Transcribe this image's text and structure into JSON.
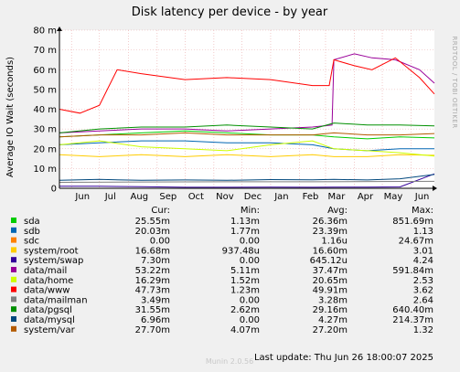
{
  "chart_data": {
    "type": "line",
    "title": "Disk latency per device - by year",
    "ylabel": "Average IO Wait (seconds)",
    "side_text": "RRDTOOL / TOBI OETIKER",
    "ylim": [
      0,
      0.08
    ],
    "yticks": [
      {
        "value": 0,
        "label": "0"
      },
      {
        "value": 0.01,
        "label": "10 m"
      },
      {
        "value": 0.02,
        "label": "20 m"
      },
      {
        "value": 0.03,
        "label": "30 m"
      },
      {
        "value": 0.04,
        "label": "40 m"
      },
      {
        "value": 0.05,
        "label": "50 m"
      },
      {
        "value": 0.06,
        "label": "60 m"
      },
      {
        "value": 0.07,
        "label": "70 m"
      },
      {
        "value": 0.08,
        "label": "80 m"
      }
    ],
    "xlim": [
      "2024-05-19",
      "2025-06-26"
    ],
    "xticks": [
      {
        "date": "2024-06-01",
        "label": "Jun"
      },
      {
        "date": "2024-07-01",
        "label": "Jul"
      },
      {
        "date": "2024-08-01",
        "label": "Aug"
      },
      {
        "date": "2024-09-01",
        "label": "Sep"
      },
      {
        "date": "2024-10-01",
        "label": "Oct"
      },
      {
        "date": "2024-11-01",
        "label": "Nov"
      },
      {
        "date": "2024-12-01",
        "label": "Dec"
      },
      {
        "date": "2025-01-01",
        "label": "Jan"
      },
      {
        "date": "2025-02-01",
        "label": "Feb"
      },
      {
        "date": "2025-03-01",
        "label": "Mar"
      },
      {
        "date": "2025-04-01",
        "label": "Apr"
      },
      {
        "date": "2025-05-01",
        "label": "May"
      },
      {
        "date": "2025-06-01",
        "label": "Jun"
      }
    ],
    "grid": true,
    "legend_headers": {
      "cur": "Cur:",
      "min": "Min:",
      "avg": "Avg:",
      "max": "Max:"
    },
    "series": [
      {
        "name": "sda",
        "color": "#00cc00",
        "cur": "25.55m",
        "min": "1.13m",
        "avg": "26.36m",
        "max": "851.69m",
        "points": [
          [
            "2024-05-19",
            0.026
          ],
          [
            "2024-07-01",
            0.027
          ],
          [
            "2024-08-15",
            0.028
          ],
          [
            "2024-10-01",
            0.029
          ],
          [
            "2024-11-15",
            0.028
          ],
          [
            "2025-01-01",
            0.027
          ],
          [
            "2025-02-15",
            0.027
          ],
          [
            "2025-03-10",
            0.026
          ],
          [
            "2025-04-15",
            0.025
          ],
          [
            "2025-05-20",
            0.026
          ],
          [
            "2025-06-26",
            0.0255
          ]
        ]
      },
      {
        "name": "sdb",
        "color": "#0066b3",
        "cur": "20.03m",
        "min": "1.77m",
        "avg": "23.39m",
        "max": "1.13",
        "points": [
          [
            "2024-05-19",
            0.022
          ],
          [
            "2024-07-01",
            0.023
          ],
          [
            "2024-08-15",
            0.024
          ],
          [
            "2024-10-01",
            0.024
          ],
          [
            "2024-11-15",
            0.023
          ],
          [
            "2025-01-01",
            0.023
          ],
          [
            "2025-02-15",
            0.022
          ],
          [
            "2025-03-10",
            0.02
          ],
          [
            "2025-04-15",
            0.019
          ],
          [
            "2025-05-20",
            0.02
          ],
          [
            "2025-06-26",
            0.02
          ]
        ]
      },
      {
        "name": "sdc",
        "color": "#ff8000",
        "cur": "0.00",
        "min": "0.00",
        "avg": "1.16u",
        "max": "24.67m",
        "points": [
          [
            "2024-05-19",
            0
          ],
          [
            "2025-06-26",
            0
          ]
        ]
      },
      {
        "name": "system/root",
        "color": "#ffcc00",
        "cur": "16.68m",
        "min": "937.48u",
        "avg": "16.60m",
        "max": "3.01",
        "points": [
          [
            "2024-05-19",
            0.017
          ],
          [
            "2024-07-01",
            0.016
          ],
          [
            "2024-08-15",
            0.017
          ],
          [
            "2024-10-01",
            0.016
          ],
          [
            "2024-11-15",
            0.017
          ],
          [
            "2025-01-01",
            0.016
          ],
          [
            "2025-02-15",
            0.017
          ],
          [
            "2025-03-10",
            0.016
          ],
          [
            "2025-04-15",
            0.016
          ],
          [
            "2025-05-20",
            0.017
          ],
          [
            "2025-06-26",
            0.0167
          ]
        ]
      },
      {
        "name": "system/swap",
        "color": "#330099",
        "cur": "7.30m",
        "min": "0.00",
        "avg": "645.12u",
        "max": "4.24",
        "points": [
          [
            "2024-05-19",
            0.001
          ],
          [
            "2024-07-01",
            0.001
          ],
          [
            "2024-08-15",
            0.0008
          ],
          [
            "2024-10-01",
            0.0005
          ],
          [
            "2024-11-15",
            0.0005
          ],
          [
            "2025-01-01",
            0.0006
          ],
          [
            "2025-02-15",
            0.0005
          ],
          [
            "2025-03-10",
            0.0006
          ],
          [
            "2025-04-15",
            0.0006
          ],
          [
            "2025-05-20",
            0.0007
          ],
          [
            "2025-06-26",
            0.0073
          ]
        ]
      },
      {
        "name": "data/mail",
        "color": "#990099",
        "cur": "53.22m",
        "min": "5.11m",
        "avg": "37.47m",
        "max": "591.84m",
        "points": [
          [
            "2024-05-19",
            0.028
          ],
          [
            "2024-07-01",
            0.029
          ],
          [
            "2024-08-15",
            0.03
          ],
          [
            "2024-10-01",
            0.03
          ],
          [
            "2024-11-15",
            0.029
          ],
          [
            "2025-01-01",
            0.03
          ],
          [
            "2025-02-15",
            0.031
          ],
          [
            "2025-03-08",
            0.032
          ],
          [
            "2025-03-10",
            0.065
          ],
          [
            "2025-04-01",
            0.068
          ],
          [
            "2025-04-20",
            0.066
          ],
          [
            "2025-05-15",
            0.065
          ],
          [
            "2025-06-10",
            0.06
          ],
          [
            "2025-06-26",
            0.0532
          ]
        ]
      },
      {
        "name": "data/home",
        "color": "#ccff00",
        "cur": "16.29m",
        "min": "1.52m",
        "avg": "20.65m",
        "max": "2.53",
        "points": [
          [
            "2024-05-19",
            0.022
          ],
          [
            "2024-07-01",
            0.024
          ],
          [
            "2024-08-15",
            0.021
          ],
          [
            "2024-10-01",
            0.02
          ],
          [
            "2024-11-15",
            0.019
          ],
          [
            "2025-01-01",
            0.022
          ],
          [
            "2025-02-15",
            0.024
          ],
          [
            "2025-03-10",
            0.02
          ],
          [
            "2025-04-15",
            0.019
          ],
          [
            "2025-05-20",
            0.018
          ],
          [
            "2025-06-26",
            0.0163
          ]
        ]
      },
      {
        "name": "data/www",
        "color": "#ff0000",
        "cur": "47.73m",
        "min": "1.23m",
        "avg": "49.91m",
        "max": "3.62",
        "points": [
          [
            "2024-05-19",
            0.04
          ],
          [
            "2024-06-10",
            0.038
          ],
          [
            "2024-07-01",
            0.042
          ],
          [
            "2024-07-20",
            0.06
          ],
          [
            "2024-08-15",
            0.058
          ],
          [
            "2024-10-01",
            0.055
          ],
          [
            "2024-11-15",
            0.056
          ],
          [
            "2025-01-01",
            0.055
          ],
          [
            "2025-02-15",
            0.052
          ],
          [
            "2025-03-05",
            0.052
          ],
          [
            "2025-03-10",
            0.065
          ],
          [
            "2025-04-01",
            0.062
          ],
          [
            "2025-04-20",
            0.06
          ],
          [
            "2025-05-15",
            0.066
          ],
          [
            "2025-06-10",
            0.056
          ],
          [
            "2025-06-26",
            0.0477
          ]
        ]
      },
      {
        "name": "data/mailman",
        "color": "#808080",
        "cur": "3.49m",
        "min": "0.00",
        "avg": "3.28m",
        "max": "2.64",
        "points": [
          [
            "2024-05-19",
            0.003
          ],
          [
            "2024-08-15",
            0.0032
          ],
          [
            "2024-11-15",
            0.0033
          ],
          [
            "2025-02-15",
            0.0033
          ],
          [
            "2025-06-26",
            0.0035
          ]
        ]
      },
      {
        "name": "data/pgsql",
        "color": "#008f00",
        "cur": "31.55m",
        "min": "2.62m",
        "avg": "29.16m",
        "max": "640.40m",
        "points": [
          [
            "2024-05-19",
            0.028
          ],
          [
            "2024-07-01",
            0.03
          ],
          [
            "2024-08-15",
            0.031
          ],
          [
            "2024-10-01",
            0.031
          ],
          [
            "2024-11-15",
            0.032
          ],
          [
            "2025-01-01",
            0.031
          ],
          [
            "2025-02-15",
            0.03
          ],
          [
            "2025-03-10",
            0.033
          ],
          [
            "2025-04-15",
            0.032
          ],
          [
            "2025-05-20",
            0.032
          ],
          [
            "2025-06-26",
            0.0316
          ]
        ]
      },
      {
        "name": "data/mysql",
        "color": "#00487d",
        "cur": "6.96m",
        "min": "0.00",
        "avg": "4.27m",
        "max": "214.37m",
        "points": [
          [
            "2024-05-19",
            0.004
          ],
          [
            "2024-07-01",
            0.0045
          ],
          [
            "2024-08-15",
            0.004
          ],
          [
            "2024-10-01",
            0.0042
          ],
          [
            "2024-11-15",
            0.004
          ],
          [
            "2025-01-01",
            0.0044
          ],
          [
            "2025-02-15",
            0.0043
          ],
          [
            "2025-03-10",
            0.0045
          ],
          [
            "2025-04-15",
            0.0042
          ],
          [
            "2025-05-20",
            0.0048
          ],
          [
            "2025-06-26",
            0.007
          ]
        ]
      },
      {
        "name": "system/var",
        "color": "#b35a00",
        "cur": "27.70m",
        "min": "4.07m",
        "avg": "27.20m",
        "max": "1.32",
        "points": [
          [
            "2024-05-19",
            0.026
          ],
          [
            "2024-07-01",
            0.027
          ],
          [
            "2024-08-15",
            0.027
          ],
          [
            "2024-10-01",
            0.028
          ],
          [
            "2024-11-15",
            0.027
          ],
          [
            "2025-01-01",
            0.027
          ],
          [
            "2025-02-15",
            0.027
          ],
          [
            "2025-03-10",
            0.028
          ],
          [
            "2025-04-15",
            0.027
          ],
          [
            "2025-05-20",
            0.027
          ],
          [
            "2025-06-26",
            0.0277
          ]
        ]
      }
    ],
    "watermark": "Munin 2.0.56",
    "last_update": "Last update: Thu Jun 26 18:00:07 2025"
  }
}
